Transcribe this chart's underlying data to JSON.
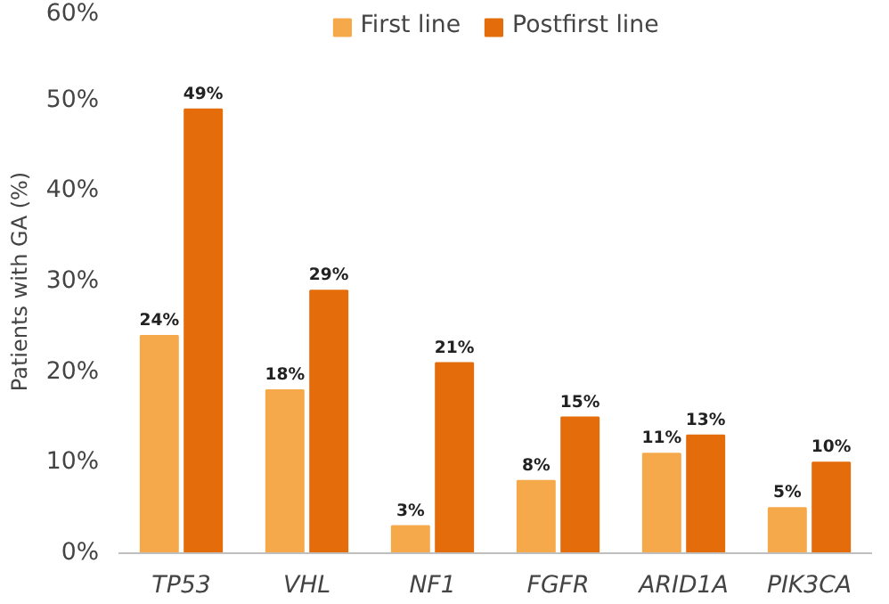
{
  "chart_data": {
    "type": "bar",
    "ylabel": "Patients with GA (%)",
    "categories": [
      "TP53",
      "VHL",
      "NF1",
      "FGFR",
      "ARID1A",
      "PIK3CA"
    ],
    "series": [
      {
        "name": "First line",
        "color": "#f5a94a",
        "values": [
          24,
          18,
          3,
          8,
          11,
          5
        ],
        "value_labels": [
          "24%",
          "18%",
          "3%",
          "8%",
          "11%",
          "5%"
        ]
      },
      {
        "name": "Postfirst line",
        "color": "#e46c0a",
        "values": [
          49,
          29,
          21,
          15,
          13,
          10
        ],
        "value_labels": [
          "49%",
          "29%",
          "21%",
          "15%",
          "13%",
          "10%"
        ]
      }
    ],
    "ylim": [
      0,
      60
    ],
    "yticks": [
      {
        "value": 0,
        "label": "0%"
      },
      {
        "value": 10,
        "label": "10%"
      },
      {
        "value": 20,
        "label": "20%"
      },
      {
        "value": 30,
        "label": "30%"
      },
      {
        "value": 40,
        "label": "40%"
      },
      {
        "value": 50,
        "label": "50%"
      },
      {
        "value": 60,
        "label": "60%"
      }
    ],
    "grid": false,
    "legend": "top"
  }
}
